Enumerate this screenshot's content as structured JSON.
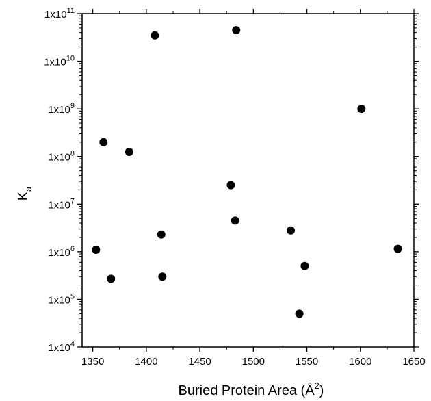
{
  "chart_data": {
    "type": "scatter",
    "xlabel": "Buried Protein Area (Å",
    "xlabel_sup": "2",
    "xlabel_end": ")",
    "ylabel": "K",
    "ylabel_sub": "a",
    "xlim": [
      1340,
      1650
    ],
    "ylim": [
      10000,
      100000000000
    ],
    "yscale": "log",
    "grid": false,
    "x_ticks": [
      1350,
      1400,
      1450,
      1500,
      1550,
      1600,
      1650
    ],
    "x_tick_labels": [
      "1350",
      "1400",
      "1450",
      "1500",
      "1550",
      "1600",
      "1650"
    ],
    "y_ticks": [
      10000,
      100000,
      1000000,
      10000000,
      100000000,
      1000000000,
      10000000000,
      100000000000
    ],
    "y_tick_labels": [
      {
        "base": "1x10",
        "exp": "4"
      },
      {
        "base": "1x10",
        "exp": "5"
      },
      {
        "base": "1x10",
        "exp": "6"
      },
      {
        "base": "1x10",
        "exp": "7"
      },
      {
        "base": "1x10",
        "exp": "8"
      },
      {
        "base": "1x10",
        "exp": "9"
      },
      {
        "base": "1x10",
        "exp": "10"
      },
      {
        "base": "1x10",
        "exp": "11"
      }
    ],
    "points": [
      {
        "x": 1353,
        "y": 1100000
      },
      {
        "x": 1360,
        "y": 200000000
      },
      {
        "x": 1367,
        "y": 270000
      },
      {
        "x": 1384,
        "y": 125000000
      },
      {
        "x": 1408,
        "y": 35000000000
      },
      {
        "x": 1414,
        "y": 2300000
      },
      {
        "x": 1415,
        "y": 300000
      },
      {
        "x": 1479,
        "y": 25000000
      },
      {
        "x": 1483,
        "y": 4500000
      },
      {
        "x": 1484,
        "y": 45000000000
      },
      {
        "x": 1535,
        "y": 2800000
      },
      {
        "x": 1543,
        "y": 50000
      },
      {
        "x": 1548,
        "y": 500000
      },
      {
        "x": 1601,
        "y": 1000000000
      },
      {
        "x": 1635,
        "y": 1150000
      }
    ],
    "marker_color": "#000000"
  }
}
